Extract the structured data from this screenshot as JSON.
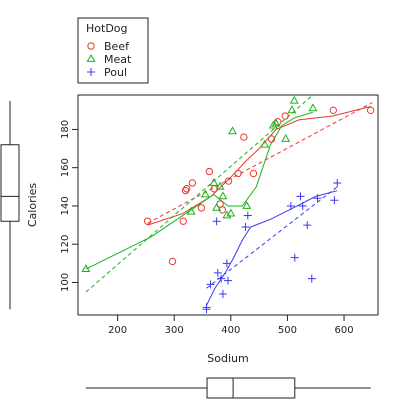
{
  "chart_data": {
    "type": "scatter",
    "xlabel": "Sodium",
    "ylabel": "Calories",
    "xlim": [
      130,
      660
    ],
    "ylim": [
      83,
      198
    ],
    "xticks": [
      200,
      300,
      400,
      500,
      600
    ],
    "yticks": [
      100,
      120,
      140,
      160,
      180
    ],
    "legend": {
      "title": "HotDog",
      "position": "top-left, above plot",
      "entries": [
        {
          "label": "Beef",
          "symbol": "circle",
          "color": "#e8392e"
        },
        {
          "label": "Meat",
          "symbol": "triangle",
          "color": "#18b41a"
        },
        {
          "label": "Poul",
          "symbol": "plus",
          "color": "#3a3aee"
        }
      ]
    },
    "series": [
      {
        "name": "Beef",
        "color": "#e8392e",
        "symbol": "circle",
        "points": [
          [
            253,
            132
          ],
          [
            297,
            111
          ],
          [
            316,
            132
          ],
          [
            320,
            148
          ],
          [
            322,
            149
          ],
          [
            332,
            152
          ],
          [
            348,
            139
          ],
          [
            362,
            158
          ],
          [
            371,
            149
          ],
          [
            381,
            141
          ],
          [
            385,
            138
          ],
          [
            396,
            153
          ],
          [
            413,
            157
          ],
          [
            423,
            176
          ],
          [
            440,
            157
          ],
          [
            472,
            175
          ],
          [
            483,
            184
          ],
          [
            496,
            187
          ],
          [
            581,
            190
          ],
          [
            647,
            190
          ]
        ],
        "fit_line": [
          [
            253,
            131
          ],
          [
            650,
            194
          ]
        ],
        "smooth": [
          [
            253,
            130
          ],
          [
            315,
            136
          ],
          [
            365,
            145
          ],
          [
            400,
            155
          ],
          [
            425,
            163
          ],
          [
            450,
            170
          ],
          [
            480,
            180
          ],
          [
            520,
            185
          ],
          [
            580,
            187
          ],
          [
            647,
            192
          ]
        ]
      },
      {
        "name": "Meat",
        "color": "#18b41a",
        "symbol": "triangle",
        "points": [
          [
            144,
            107
          ],
          [
            330,
            137
          ],
          [
            355,
            146
          ],
          [
            370,
            152
          ],
          [
            375,
            139
          ],
          [
            381,
            150
          ],
          [
            386,
            145
          ],
          [
            393,
            135
          ],
          [
            400,
            136
          ],
          [
            403,
            179
          ],
          [
            428,
            140
          ],
          [
            460,
            172
          ],
          [
            475,
            182
          ],
          [
            480,
            183
          ],
          [
            497,
            175
          ],
          [
            508,
            190
          ],
          [
            512,
            195
          ],
          [
            545,
            191
          ]
        ],
        "fit_line": [
          [
            144,
            95
          ],
          [
            545,
            198
          ]
        ],
        "smooth": [
          [
            144,
            107
          ],
          [
            260,
            124
          ],
          [
            330,
            138
          ],
          [
            370,
            146
          ],
          [
            395,
            140
          ],
          [
            420,
            140
          ],
          [
            445,
            150
          ],
          [
            470,
            172
          ],
          [
            490,
            182
          ],
          [
            512,
            186
          ],
          [
            545,
            189
          ]
        ]
      },
      {
        "name": "Poul",
        "color": "#3a3aee",
        "symbol": "plus",
        "points": [
          [
            357,
            87
          ],
          [
            357,
            86
          ],
          [
            364,
            99
          ],
          [
            375,
            132
          ],
          [
            377,
            105
          ],
          [
            383,
            102
          ],
          [
            386,
            94
          ],
          [
            393,
            110
          ],
          [
            395,
            101
          ],
          [
            426,
            129
          ],
          [
            430,
            135
          ],
          [
            506,
            140
          ],
          [
            513,
            113
          ],
          [
            523,
            145
          ],
          [
            527,
            140
          ],
          [
            535,
            130
          ],
          [
            543,
            102
          ],
          [
            553,
            144
          ],
          [
            583,
            143
          ],
          [
            588,
            152
          ]
        ],
        "fit_line": [
          [
            357,
            97
          ],
          [
            588,
            150
          ]
        ],
        "smooth": [
          [
            357,
            88
          ],
          [
            372,
            97
          ],
          [
            390,
            105
          ],
          [
            405,
            113
          ],
          [
            420,
            122
          ],
          [
            435,
            129
          ],
          [
            470,
            133
          ],
          [
            510,
            139
          ],
          [
            550,
            145
          ],
          [
            588,
            148
          ]
        ]
      }
    ],
    "marginal_boxplots": {
      "x": {
        "min": 144,
        "q1": 358,
        "median": 404,
        "q3": 513,
        "max": 647
      },
      "y": {
        "min": 86,
        "q1": 132,
        "median": 145,
        "q3": 172,
        "max": 195
      }
    }
  }
}
